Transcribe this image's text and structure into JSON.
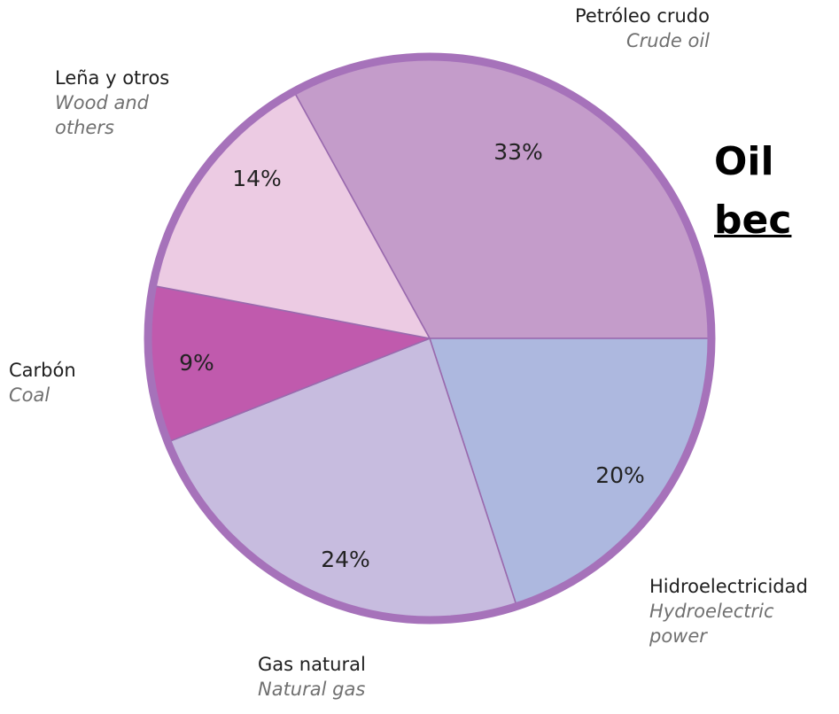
{
  "chart_data": {
    "type": "pie",
    "slices": [
      {
        "key": "crude_oil",
        "label_es": "Petróleo crudo",
        "label_en": "Crude oil",
        "value": 33,
        "label": "33%",
        "color": "#c49cca"
      },
      {
        "key": "hydro",
        "label_es": "Hidroelectricidad",
        "label_en": "Hydroelectric power",
        "value": 20,
        "label": "20%",
        "color": "#adb8df"
      },
      {
        "key": "natural_gas",
        "label_es": "Gas natural",
        "label_en": "Natural gas",
        "value": 24,
        "label": "24%",
        "color": "#c7bcdf"
      },
      {
        "key": "coal",
        "label_es": "Carbón",
        "label_en": "Coal",
        "value": 9,
        "label": "9%",
        "color": "#c05aad"
      },
      {
        "key": "wood",
        "label_es": "Leña y otros",
        "label_en": "Wood and others",
        "value": 14,
        "label": "14%",
        "color": "#eccbe3"
      }
    ],
    "rim_color": "#a672ba",
    "title": ""
  },
  "headline": {
    "line1": "Oil",
    "line2": "bec"
  }
}
